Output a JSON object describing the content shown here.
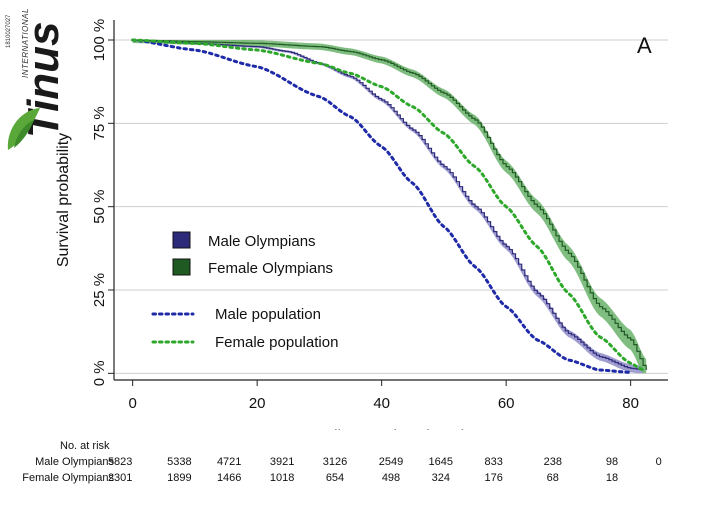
{
  "brand": {
    "name": "Tinus",
    "tagline": "INTERNATIONAL",
    "code": "1810027027",
    "colors": {
      "green": "#5aa83a",
      "dark": "#1a1a1a"
    }
  },
  "chart_data": {
    "type": "line",
    "panel_label": "A",
    "xlabel": "Follow-up time (Year)",
    "ylabel": "Survival probability",
    "xlim": [
      -3,
      86
    ],
    "ylim": [
      -2,
      106
    ],
    "x_ticks": [
      0,
      20,
      40,
      60,
      80
    ],
    "y_ticks": [
      0,
      25,
      50,
      75,
      100
    ],
    "y_tick_labels": [
      "0 %",
      "25 %",
      "50 %",
      "75 %",
      "100 %"
    ],
    "gridlines": "horizontal",
    "legend_position": "center-left",
    "series": [
      {
        "name": "Male Olympians",
        "style": "step",
        "color": "#2e2a7a",
        "band_color": "#8f8cc9",
        "points": [
          [
            0,
            100
          ],
          [
            10,
            99
          ],
          [
            20,
            98
          ],
          [
            25,
            96.5
          ],
          [
            30,
            93
          ],
          [
            35,
            89
          ],
          [
            40,
            82
          ],
          [
            45,
            73
          ],
          [
            50,
            62
          ],
          [
            55,
            50
          ],
          [
            60,
            38
          ],
          [
            65,
            24
          ],
          [
            70,
            12
          ],
          [
            75,
            5
          ],
          [
            80,
            1.5
          ],
          [
            82,
            1
          ]
        ],
        "band_halfwidth": 1.2
      },
      {
        "name": "Female Olympians",
        "style": "step",
        "color": "#1f5a23",
        "band_color": "#6ab26a",
        "points": [
          [
            0,
            100
          ],
          [
            10,
            99.5
          ],
          [
            20,
            99
          ],
          [
            30,
            98
          ],
          [
            35,
            96.5
          ],
          [
            40,
            94
          ],
          [
            45,
            90
          ],
          [
            50,
            84
          ],
          [
            55,
            76
          ],
          [
            60,
            62
          ],
          [
            65,
            50
          ],
          [
            70,
            36
          ],
          [
            75,
            20
          ],
          [
            80,
            10
          ],
          [
            82.5,
            1
          ]
        ],
        "band_halfwidth": 3.2
      },
      {
        "name": "Male population",
        "style": "dotted",
        "color": "#1f2aa8",
        "points": [
          [
            0,
            100
          ],
          [
            10,
            97
          ],
          [
            20,
            92
          ],
          [
            30,
            83
          ],
          [
            35,
            77
          ],
          [
            40,
            68
          ],
          [
            45,
            57
          ],
          [
            50,
            44
          ],
          [
            55,
            32
          ],
          [
            60,
            20
          ],
          [
            65,
            10
          ],
          [
            70,
            4
          ],
          [
            75,
            1
          ],
          [
            80,
            0.3
          ]
        ]
      },
      {
        "name": "Female population",
        "style": "dotted",
        "color": "#2ea82a",
        "points": [
          [
            0,
            100
          ],
          [
            10,
            99
          ],
          [
            20,
            97
          ],
          [
            30,
            93
          ],
          [
            35,
            90
          ],
          [
            40,
            86
          ],
          [
            45,
            80
          ],
          [
            50,
            72
          ],
          [
            55,
            62
          ],
          [
            60,
            50
          ],
          [
            65,
            38
          ],
          [
            70,
            24
          ],
          [
            75,
            11
          ],
          [
            80,
            3
          ],
          [
            82,
            1
          ]
        ]
      }
    ],
    "risk_table": {
      "title": "No. at risk",
      "times": [
        -2,
        7.5,
        15.5,
        24,
        32.5,
        41.5,
        49.5,
        58,
        67.5,
        77,
        84.5
      ],
      "rows": [
        {
          "label": "Male Olympians",
          "values": [
            "5823",
            "5338",
            "4721",
            "3921",
            "3126",
            "2549",
            "1645",
            "833",
            "238",
            "98",
            "0"
          ]
        },
        {
          "label": "Female Olympians",
          "values": [
            "2301",
            "1899",
            "1466",
            "1018",
            "654",
            "498",
            "324",
            "176",
            "68",
            "18",
            ""
          ]
        }
      ]
    }
  }
}
